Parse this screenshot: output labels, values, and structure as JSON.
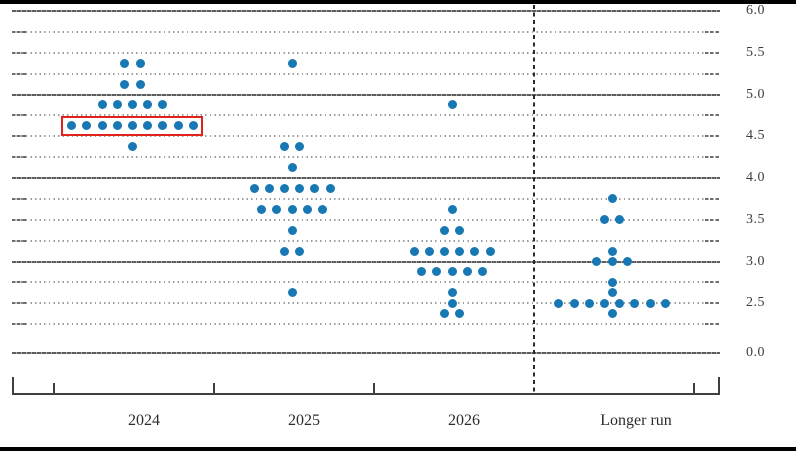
{
  "chart_data": {
    "type": "scatter",
    "subtype": "fomc-dot-plot",
    "title": "",
    "dot_color": "#1878b4",
    "highlight_color": "#e2231b",
    "y_axis": {
      "tick_labels": [
        "6.0",
        "5.5",
        "5.0",
        "4.5",
        "4.0",
        "3.5",
        "3.0",
        "2.5",
        "0.0"
      ],
      "tick_values": [
        6.0,
        5.5,
        5.0,
        4.5,
        4.0,
        3.5,
        3.0,
        2.5,
        0.0
      ],
      "gridline_step": 0.25,
      "solid_gridlines_at": [
        6.0,
        5.0,
        4.0,
        3.0,
        0.0
      ],
      "top_value": 6.0,
      "lowest_dotted_value": 2.25,
      "axis_truncated_below": 2.25,
      "labels_side": "right",
      "grid": true
    },
    "x_axis": {
      "categories": [
        "2024",
        "2025",
        "2026",
        "Longer run"
      ]
    },
    "series": [
      {
        "category": "2024",
        "dots": [
          {
            "value": 5.375,
            "count": 2
          },
          {
            "value": 5.125,
            "count": 2
          },
          {
            "value": 4.875,
            "count": 5
          },
          {
            "value": 4.625,
            "count": 9
          },
          {
            "value": 4.375,
            "count": 1
          }
        ]
      },
      {
        "category": "2025",
        "dots": [
          {
            "value": 5.375,
            "count": 1
          },
          {
            "value": 4.375,
            "count": 2
          },
          {
            "value": 4.125,
            "count": 1
          },
          {
            "value": 3.875,
            "count": 6
          },
          {
            "value": 3.625,
            "count": 5
          },
          {
            "value": 3.375,
            "count": 1
          },
          {
            "value": 3.125,
            "count": 2
          },
          {
            "value": 2.625,
            "count": 1
          }
        ]
      },
      {
        "category": "2026",
        "dots": [
          {
            "value": 4.875,
            "count": 1
          },
          {
            "value": 3.625,
            "count": 1
          },
          {
            "value": 3.375,
            "count": 2
          },
          {
            "value": 3.125,
            "count": 6
          },
          {
            "value": 2.875,
            "count": 5
          },
          {
            "value": 2.625,
            "count": 1
          },
          {
            "value": 2.5,
            "count": 1
          },
          {
            "value": 2.375,
            "count": 2
          }
        ]
      },
      {
        "category": "Longer run",
        "dots": [
          {
            "value": 3.75,
            "count": 1
          },
          {
            "value": 3.5,
            "count": 2
          },
          {
            "value": 3.125,
            "count": 1
          },
          {
            "value": 3.0,
            "count": 3
          },
          {
            "value": 2.75,
            "count": 1
          },
          {
            "value": 2.625,
            "count": 1
          },
          {
            "value": 2.5,
            "count": 8
          },
          {
            "value": 2.375,
            "count": 1
          }
        ]
      }
    ],
    "highlight": {
      "category": "2024",
      "value": 4.625,
      "count": 9
    },
    "separator": {
      "style": "dashed",
      "position": "before Longer run"
    },
    "legend": null
  }
}
